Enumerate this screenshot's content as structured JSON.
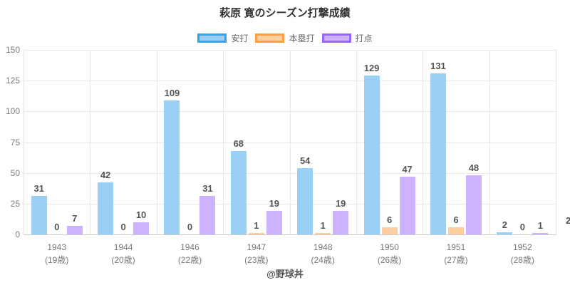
{
  "title": "萩原 寛のシーズン打撃成績",
  "footer": "@野球丼",
  "edge_partial_label": "2",
  "colors": {
    "title_text": "#333333",
    "tick_text": "#7d7d7d",
    "data_label_text": "#555555",
    "grid": "#e8e8e8",
    "axis_line": "#c9c9c9",
    "background": "#ffffff"
  },
  "chart_data": {
    "type": "bar",
    "title": "萩原 寛のシーズン打撃成績",
    "categories": [
      "1943",
      "1944",
      "1946",
      "1947",
      "1948",
      "1950",
      "1951",
      "1952"
    ],
    "category_sublabels": [
      "(19歳)",
      "(20歳)",
      "(22歳)",
      "(23歳)",
      "(24歳)",
      "(26歳)",
      "(27歳)",
      "(28歳)"
    ],
    "series": [
      {
        "key": "hits",
        "name": "安打",
        "values": [
          31,
          42,
          109,
          68,
          54,
          129,
          131,
          2
        ],
        "fill": "#9ad0f5",
        "border": "#36a2eb"
      },
      {
        "key": "home-runs",
        "name": "本塁打",
        "values": [
          0,
          0,
          0,
          1,
          1,
          6,
          6,
          0
        ],
        "fill": "#ffcfa0",
        "border": "#ff9f40"
      },
      {
        "key": "rbi",
        "name": "打点",
        "values": [
          7,
          10,
          31,
          19,
          19,
          47,
          48,
          1
        ],
        "fill": "#ccb2ff",
        "border": "#9966ff"
      }
    ],
    "y_ticks": [
      0,
      25,
      50,
      75,
      100,
      125,
      150
    ],
    "ylim": [
      0,
      150
    ],
    "xlabel": "",
    "ylabel": "",
    "grid": true,
    "legend_position": "top",
    "value_labels": true
  }
}
